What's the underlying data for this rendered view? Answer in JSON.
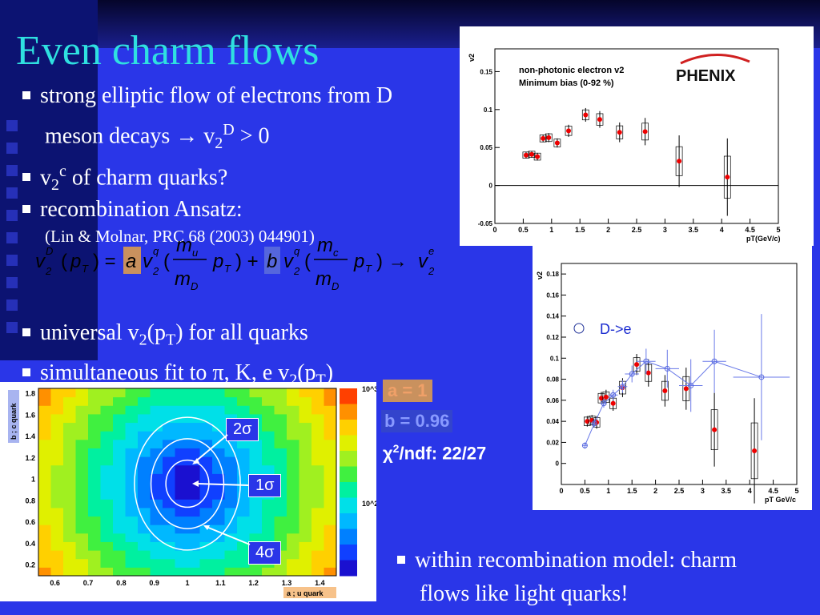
{
  "title": "Even charm flows",
  "bullets": {
    "b1_line1": "strong elliptic flow of electrons from D",
    "b1_line2_a": "meson decays → v",
    "b1_line2_sub": "2",
    "b1_line2_sup": "D",
    "b1_line2_b": " > 0",
    "b2_a": "v",
    "b2_sub": "2",
    "b2_sup": "c",
    "b2_b": " of charm quarks?",
    "b3": "recombination Ansatz:",
    "b3_ref": "(Lin & Molnar, PRC 68 (2003) 044901)",
    "b4_a": "universal v",
    "b4_sub": "2",
    "b4_b": "(p",
    "b4_sub2": "T",
    "b4_c": ") for all quarks",
    "b5_a": "simultaneous fit to π, K, e v",
    "b5_sub": "2",
    "b5_b": "(p",
    "b5_sub2": "T",
    "b5_c": ")",
    "b6_line1": "within recombination model: charm",
    "b6_line2": "flows like light quarks!"
  },
  "fit": {
    "a": "a = 1",
    "b": "b = 0.96",
    "chi_a": "χ",
    "chi_sup": "2",
    "chi_b": "/ndf: 22/27"
  },
  "contour_labels": {
    "s2": "2σ",
    "s1": "1σ",
    "s4": "4σ"
  },
  "colors": {
    "background": "#2a36e8",
    "title": "#2fe0e0",
    "text": "#ffffff",
    "fit_a": "#f0a068",
    "fit_b": "#8899ff"
  },
  "chart_data": [
    {
      "type": "scatter",
      "title": "non-photonic electron v2",
      "subtitle": "Minimum bias (0-92 %)",
      "logo": "PHENIX",
      "xlabel": "pT(GeV/c)",
      "ylabel": "v2",
      "xlim": [
        0,
        5
      ],
      "ylim": [
        -0.05,
        0.18
      ],
      "xticks": [
        "0",
        "0.5",
        "1",
        "1.5",
        "2",
        "2.5",
        "3",
        "3.5",
        "4",
        "4.5",
        "5"
      ],
      "yticks": [
        "-0.05",
        "0",
        "0.05",
        "0.1",
        "0.15"
      ],
      "series": [
        {
          "x": [
            0.55,
            0.65,
            0.75,
            0.85,
            0.95,
            1.1,
            1.3,
            1.6,
            1.85,
            2.2,
            2.65,
            3.25,
            4.1
          ],
          "y": [
            0.04,
            0.041,
            0.038,
            0.062,
            0.063,
            0.056,
            0.072,
            0.093,
            0.087,
            0.07,
            0.071,
            0.032,
            0.011
          ],
          "err": [
            0.004,
            0.004,
            0.005,
            0.005,
            0.006,
            0.006,
            0.008,
            0.009,
            0.011,
            0.013,
            0.018,
            0.034,
            0.051
          ]
        }
      ]
    },
    {
      "type": "scatter",
      "legend": "D->e",
      "xlabel": "pT GeV/c",
      "ylabel": "v2",
      "xlim": [
        0,
        5
      ],
      "ylim": [
        -0.02,
        0.19
      ],
      "xticks": [
        "0",
        "0.5",
        "1",
        "1.5",
        "2",
        "2.5",
        "3",
        "3.5",
        "4",
        "4.5",
        "5"
      ],
      "yticks": [
        "0",
        "0.02",
        "0.04",
        "0.06",
        "0.08",
        "0.1",
        "0.12",
        "0.14",
        "0.16",
        "0.18"
      ],
      "series": [
        {
          "x": [
            0.55,
            0.65,
            0.75,
            0.85,
            0.95,
            1.1,
            1.3,
            1.6,
            1.85,
            2.2,
            2.65,
            3.25,
            4.1
          ],
          "y": [
            0.04,
            0.041,
            0.039,
            0.062,
            0.063,
            0.057,
            0.072,
            0.094,
            0.086,
            0.069,
            0.071,
            0.032,
            0.012
          ],
          "err": [
            0.005,
            0.005,
            0.006,
            0.006,
            0.007,
            0.007,
            0.009,
            0.01,
            0.013,
            0.015,
            0.02,
            0.035,
            0.05
          ]
        },
        {
          "name": "D->e",
          "x": [
            0.5,
            0.7,
            0.9,
            1.1,
            1.3,
            1.5,
            1.8,
            2.25,
            2.75,
            3.25,
            4.25
          ],
          "y": [
            0.017,
            0.038,
            0.057,
            0.065,
            0.073,
            0.085,
            0.097,
            0.09,
            0.074,
            0.097,
            0.082
          ],
          "xerr": [
            0.05,
            0.05,
            0.05,
            0.1,
            0.1,
            0.15,
            0.2,
            0.25,
            0.25,
            0.25,
            0.6
          ],
          "err": [
            0.003,
            0.004,
            0.004,
            0.005,
            0.006,
            0.008,
            0.012,
            0.018,
            0.025,
            0.03,
            0.06
          ]
        }
      ]
    },
    {
      "type": "heatmap",
      "xlabel": "a ; u quark",
      "ylabel": "b ; c quark",
      "xlim": [
        0.55,
        1.45
      ],
      "ylim": [
        0.1,
        1.85
      ],
      "xticks": [
        "0.6",
        "0.7",
        "0.8",
        "0.9",
        "1",
        "1.1",
        "1.2",
        "1.3",
        "1.4"
      ],
      "yticks": [
        "0.2",
        "0.4",
        "0.6",
        "0.8",
        "1",
        "1.2",
        "1.4",
        "1.6",
        "1.8"
      ],
      "zticks": [
        "10^3",
        "10^2"
      ],
      "minimum": {
        "x": 1.0,
        "y": 0.96
      }
    }
  ]
}
